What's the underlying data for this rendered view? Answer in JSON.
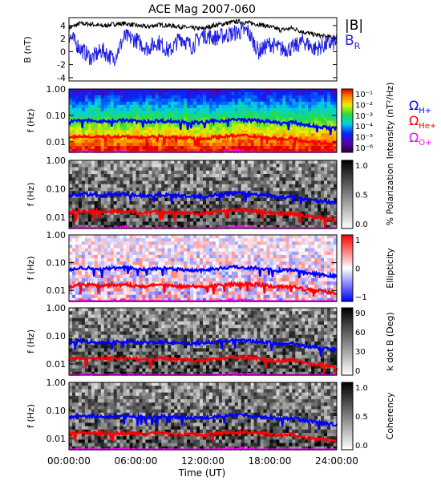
{
  "title": "ACE Mag 2007-060",
  "xlabel": "Time (UT)",
  "x_ticks": [
    "00:00:00",
    "06:00:00",
    "12:00:00",
    "18:00:00",
    "24:00:00"
  ],
  "colors": {
    "B_total": "#000000",
    "B_R": "#1f1fe0",
    "H_plus": "#0000ff",
    "He_plus": "#ff0000",
    "O_plus": "#ff00ff"
  },
  "chart_data": [
    {
      "type": "line",
      "panel": "field",
      "ylabel": "B (nT)",
      "ylim": [
        -4.5,
        5.2
      ],
      "y_ticks": [
        "4",
        "2",
        "0",
        "-2",
        "-4"
      ],
      "x": [
        0,
        1,
        2,
        3,
        4,
        5,
        6,
        7,
        8,
        9,
        10,
        11,
        12,
        13,
        14,
        15,
        16,
        17,
        18,
        19,
        20,
        21,
        22,
        23,
        24
      ],
      "series": [
        {
          "name": "|B|",
          "values": [
            3.6,
            4.3,
            4.2,
            3.9,
            4.2,
            4.3,
            4.0,
            3.8,
            4.1,
            4.0,
            3.8,
            3.6,
            3.5,
            4.0,
            4.3,
            4.6,
            4.4,
            4.2,
            3.8,
            3.3,
            3.6,
            3.0,
            2.6,
            2.3,
            2.1
          ]
        },
        {
          "name": "B_R",
          "values": [
            2.6,
            0.5,
            -1.0,
            0.2,
            -1.2,
            2.3,
            1.8,
            0.5,
            1.5,
            0.0,
            2.2,
            0.8,
            2.6,
            2.1,
            2.5,
            2.9,
            3.2,
            0.0,
            1.2,
            0.4,
            0.5,
            1.6,
            0.4,
            1.0,
            1.5
          ]
        }
      ]
    },
    {
      "type": "heatmap",
      "panel": "intensity",
      "ylabel": "f (Hz)",
      "y_scale": "log",
      "ylim": [
        0.004,
        1.0
      ],
      "y_ticks": [
        "1.00",
        "0.10",
        "0.01"
      ],
      "colorbar_label": "Intensity (nT²/Hz)",
      "colorbar_ticks": [
        "10⁻¹",
        "10⁻²",
        "10⁻³",
        "10⁻⁴",
        "10⁻⁵",
        "10⁻⁶"
      ]
    },
    {
      "type": "heatmap",
      "panel": "polarization",
      "ylabel": "f (Hz)",
      "y_scale": "log",
      "ylim": [
        0.004,
        1.0
      ],
      "y_ticks": [
        "1.00",
        "0.10",
        "0.01"
      ],
      "colorbar_label": "% Polarization",
      "colorbar_ticks": [
        "1.0",
        "0.5",
        "0.0"
      ]
    },
    {
      "type": "heatmap",
      "panel": "ellipticity",
      "ylabel": "f (Hz)",
      "y_scale": "log",
      "ylim": [
        0.004,
        1.0
      ],
      "y_ticks": [
        "1.00",
        "0.10",
        "0.01"
      ],
      "colorbar_label": "Ellipticity",
      "colorbar_ticks": [
        "1",
        "0",
        "−1"
      ]
    },
    {
      "type": "heatmap",
      "panel": "kdotb",
      "ylabel": "f (Hz)",
      "y_scale": "log",
      "ylim": [
        0.004,
        1.0
      ],
      "y_ticks": [
        "1.00",
        "0.10",
        "0.01"
      ],
      "colorbar_label": "k dot B (Deg)",
      "colorbar_ticks": [
        "90",
        "60",
        "30",
        "0"
      ]
    },
    {
      "type": "heatmap",
      "panel": "coherency",
      "ylabel": "f (Hz)",
      "y_scale": "log",
      "ylim": [
        0.004,
        1.0
      ],
      "y_ticks": [
        "1.00",
        "0.10",
        "0.01"
      ],
      "colorbar_label": "Coherency",
      "colorbar_ticks": [
        "1.0",
        "0.5",
        "0.0"
      ]
    }
  ],
  "gyrofrequency_lines": {
    "x": [
      0,
      1,
      2,
      3,
      4,
      5,
      6,
      7,
      8,
      9,
      10,
      11,
      12,
      13,
      14,
      15,
      16,
      17,
      18,
      19,
      20,
      21,
      22,
      23,
      24
    ],
    "series": [
      {
        "name": "Ω_H+",
        "values": [
          0.055,
          0.065,
          0.062,
          0.058,
          0.063,
          0.065,
          0.06,
          0.057,
          0.062,
          0.06,
          0.057,
          0.054,
          0.053,
          0.06,
          0.065,
          0.069,
          0.066,
          0.063,
          0.057,
          0.05,
          0.054,
          0.045,
          0.039,
          0.035,
          0.032
        ]
      },
      {
        "name": "Ω_He+",
        "values": [
          0.014,
          0.016,
          0.016,
          0.015,
          0.016,
          0.016,
          0.015,
          0.014,
          0.016,
          0.015,
          0.014,
          0.014,
          0.013,
          0.015,
          0.016,
          0.017,
          0.017,
          0.016,
          0.014,
          0.013,
          0.014,
          0.011,
          0.01,
          0.009,
          0.008
        ]
      },
      {
        "name": "Ω_O+",
        "values": [
          0.0034,
          0.0041,
          0.0039,
          0.0036,
          0.0039,
          0.0041,
          0.0038,
          0.0036,
          0.0039,
          0.0038,
          0.0036,
          0.0034,
          0.0033,
          0.0038,
          0.0041,
          0.0043,
          0.0041,
          0.0039,
          0.0036,
          0.0031,
          0.0034,
          0.0028,
          0.0025,
          0.0022,
          0.002
        ]
      }
    ]
  },
  "legends": {
    "field": {
      "B_total": "|B|",
      "B_R_main": "B",
      "B_R_sub": "R"
    },
    "ions": [
      {
        "main": "Ω",
        "sub": "H+"
      },
      {
        "main": "Ω",
        "sub": "He+"
      },
      {
        "main": "Ω",
        "sub": "O+"
      }
    ]
  }
}
